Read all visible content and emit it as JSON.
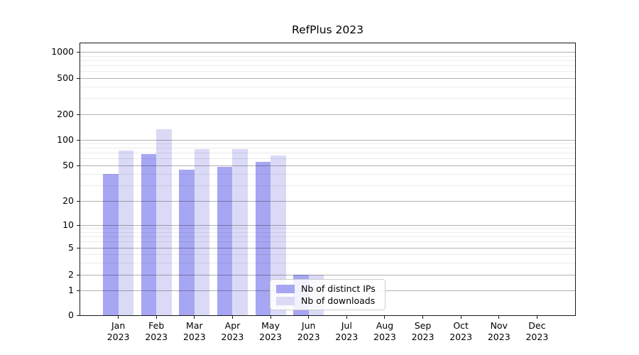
{
  "colors": {
    "distinct_ips": "#a6a6f2",
    "downloads": "#dadaf7",
    "major_grid": "#b0b0b0",
    "minor_grid": "#ececec",
    "frame": "#1a1a1a",
    "background": "#ffffff"
  },
  "chart_data": {
    "type": "bar",
    "title": "RefPlus 2023",
    "categories": [
      "Jan 2023",
      "Feb 2023",
      "Mar 2023",
      "Apr 2023",
      "May 2023",
      "Jun 2023",
      "Jul 2023",
      "Aug 2023",
      "Sep 2023",
      "Oct 2023",
      "Nov 2023",
      "Dec 2023"
    ],
    "series": [
      {
        "name": "Nb of distinct IPs",
        "color": "#a6a6f2",
        "values": [
          40,
          68,
          45,
          48,
          55,
          2,
          0,
          0,
          0,
          0,
          0,
          0
        ]
      },
      {
        "name": "Nb of downloads",
        "color": "#dadaf7",
        "values": [
          75,
          134,
          78,
          77,
          65,
          2,
          0,
          0,
          0,
          0,
          0,
          0
        ]
      }
    ],
    "xlabel": "",
    "ylabel": "",
    "yscale": "log-like (non-linear, ticks 0,1,2,5,10,20,50,100,200,500,1000)",
    "yticks": [
      0,
      1,
      2,
      5,
      10,
      20,
      50,
      100,
      200,
      500,
      1000
    ],
    "minor_yticks": [
      3,
      4,
      6,
      7,
      8,
      9,
      30,
      40,
      60,
      70,
      80,
      90,
      300,
      400,
      600,
      700,
      800,
      900
    ],
    "ylim": [
      0,
      1250
    ],
    "grid": "horizontal major and minor gridlines, drawn over bars",
    "legend_position": "lower center, inside plot"
  }
}
